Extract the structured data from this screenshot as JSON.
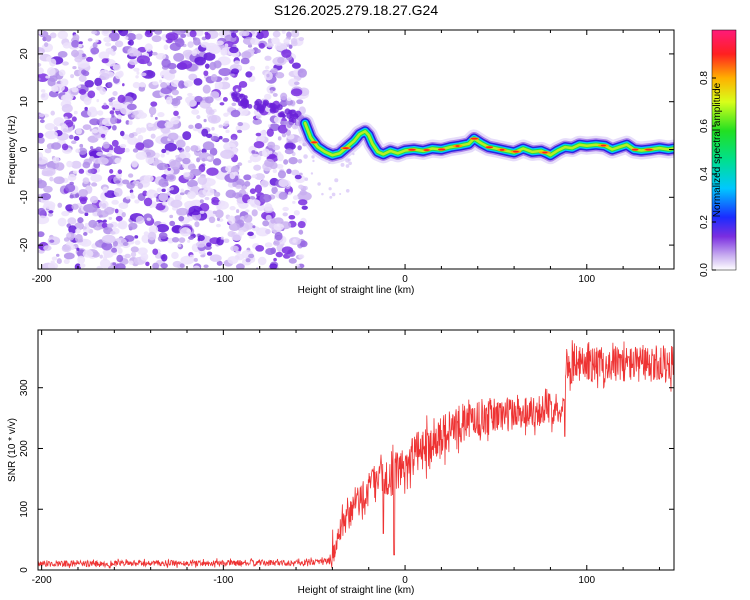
{
  "title": "S126.2025.279.18.27.G24",
  "chart_data": [
    {
      "type": "heatmap",
      "xlabel": "Height of straight line (km)",
      "ylabel": "Frequency (Hz)",
      "xlim": [
        -202,
        148
      ],
      "ylim": [
        -25,
        25
      ],
      "xticks": [
        -200,
        -100,
        0,
        100
      ],
      "yticks": [
        -20,
        -10,
        0,
        10,
        20
      ],
      "noise_region_x": [
        -202,
        -55
      ],
      "ridge_points": [
        [
          -55,
          5.5
        ],
        [
          -52,
          2.5
        ],
        [
          -48,
          0.5
        ],
        [
          -44,
          -0.5
        ],
        [
          -40,
          -1.2
        ],
        [
          -36,
          -0.8
        ],
        [
          -32,
          0.5
        ],
        [
          -28,
          1.8
        ],
        [
          -25,
          3.2
        ],
        [
          -22,
          3.8
        ],
        [
          -20,
          3.0
        ],
        [
          -18,
          1.2
        ],
        [
          -15,
          -0.5
        ],
        [
          -12,
          -1.0
        ],
        [
          -8,
          -0.3
        ],
        [
          -4,
          -0.8
        ],
        [
          0,
          -0.2
        ],
        [
          5,
          0.0
        ],
        [
          10,
          -0.3
        ],
        [
          15,
          0.2
        ],
        [
          20,
          0.0
        ],
        [
          25,
          0.5
        ],
        [
          30,
          0.8
        ],
        [
          35,
          1.2
        ],
        [
          38,
          2.3
        ],
        [
          42,
          1.3
        ],
        [
          46,
          0.5
        ],
        [
          50,
          0.2
        ],
        [
          55,
          -0.2
        ],
        [
          60,
          -0.6
        ],
        [
          65,
          0.2
        ],
        [
          70,
          -0.5
        ],
        [
          75,
          -0.3
        ],
        [
          78,
          -0.8
        ],
        [
          80,
          -1.2
        ],
        [
          84,
          -0.2
        ],
        [
          88,
          0.5
        ],
        [
          92,
          0.3
        ],
        [
          96,
          1.0
        ],
        [
          100,
          0.8
        ],
        [
          105,
          1.0
        ],
        [
          110,
          0.8
        ],
        [
          114,
          0.0
        ],
        [
          118,
          0.5
        ],
        [
          122,
          1.0
        ],
        [
          126,
          0.0
        ],
        [
          130,
          -0.2
        ],
        [
          135,
          0.0
        ],
        [
          140,
          0.3
        ],
        [
          145,
          0.0
        ],
        [
          148,
          0.2
        ]
      ]
    },
    {
      "type": "colorbar",
      "label": "Normalized spectral amplitude",
      "range": [
        0,
        1
      ],
      "ticks": [
        0.0,
        0.2,
        0.4,
        0.6,
        0.8
      ],
      "tick_labels": [
        "0.0",
        "0.2",
        "0.4",
        "0.6",
        "0.8"
      ]
    },
    {
      "type": "line",
      "xlabel": "Height of straight line (km)",
      "ylabel": "SNR (10 * v/v)",
      "xlim": [
        -202,
        148
      ],
      "ylim": [
        0,
        395
      ],
      "xticks": [
        -200,
        -100,
        0,
        100
      ],
      "yticks": [
        0,
        100,
        200,
        300
      ],
      "color": "#ee3333",
      "trend_points": [
        [
          -202,
          10
        ],
        [
          -60,
          12
        ],
        [
          -42,
          15
        ],
        [
          -38,
          40
        ],
        [
          -34,
          70
        ],
        [
          -30,
          95
        ],
        [
          -25,
          115
        ],
        [
          -20,
          135
        ],
        [
          -15,
          145
        ],
        [
          -10,
          150
        ],
        [
          -5,
          160
        ],
        [
          0,
          175
        ],
        [
          5,
          190
        ],
        [
          10,
          200
        ],
        [
          15,
          210
        ],
        [
          20,
          220
        ],
        [
          25,
          232
        ],
        [
          30,
          240
        ],
        [
          40,
          250
        ],
        [
          50,
          255
        ],
        [
          60,
          258
        ],
        [
          70,
          262
        ],
        [
          80,
          265
        ],
        [
          87,
          268
        ],
        [
          88,
          335
        ],
        [
          95,
          340
        ],
        [
          110,
          338
        ],
        [
          125,
          340
        ],
        [
          135,
          335
        ],
        [
          148,
          340
        ]
      ],
      "noise_amplitude": [
        [
          -202,
          5
        ],
        [
          -42,
          5
        ],
        [
          -40,
          25
        ],
        [
          0,
          35
        ],
        [
          50,
          30
        ],
        [
          87,
          25
        ],
        [
          88,
          30
        ],
        [
          148,
          30
        ]
      ],
      "dips": [
        [
          -6,
          25
        ],
        [
          -12,
          60
        ],
        [
          88,
          220
        ]
      ]
    }
  ]
}
